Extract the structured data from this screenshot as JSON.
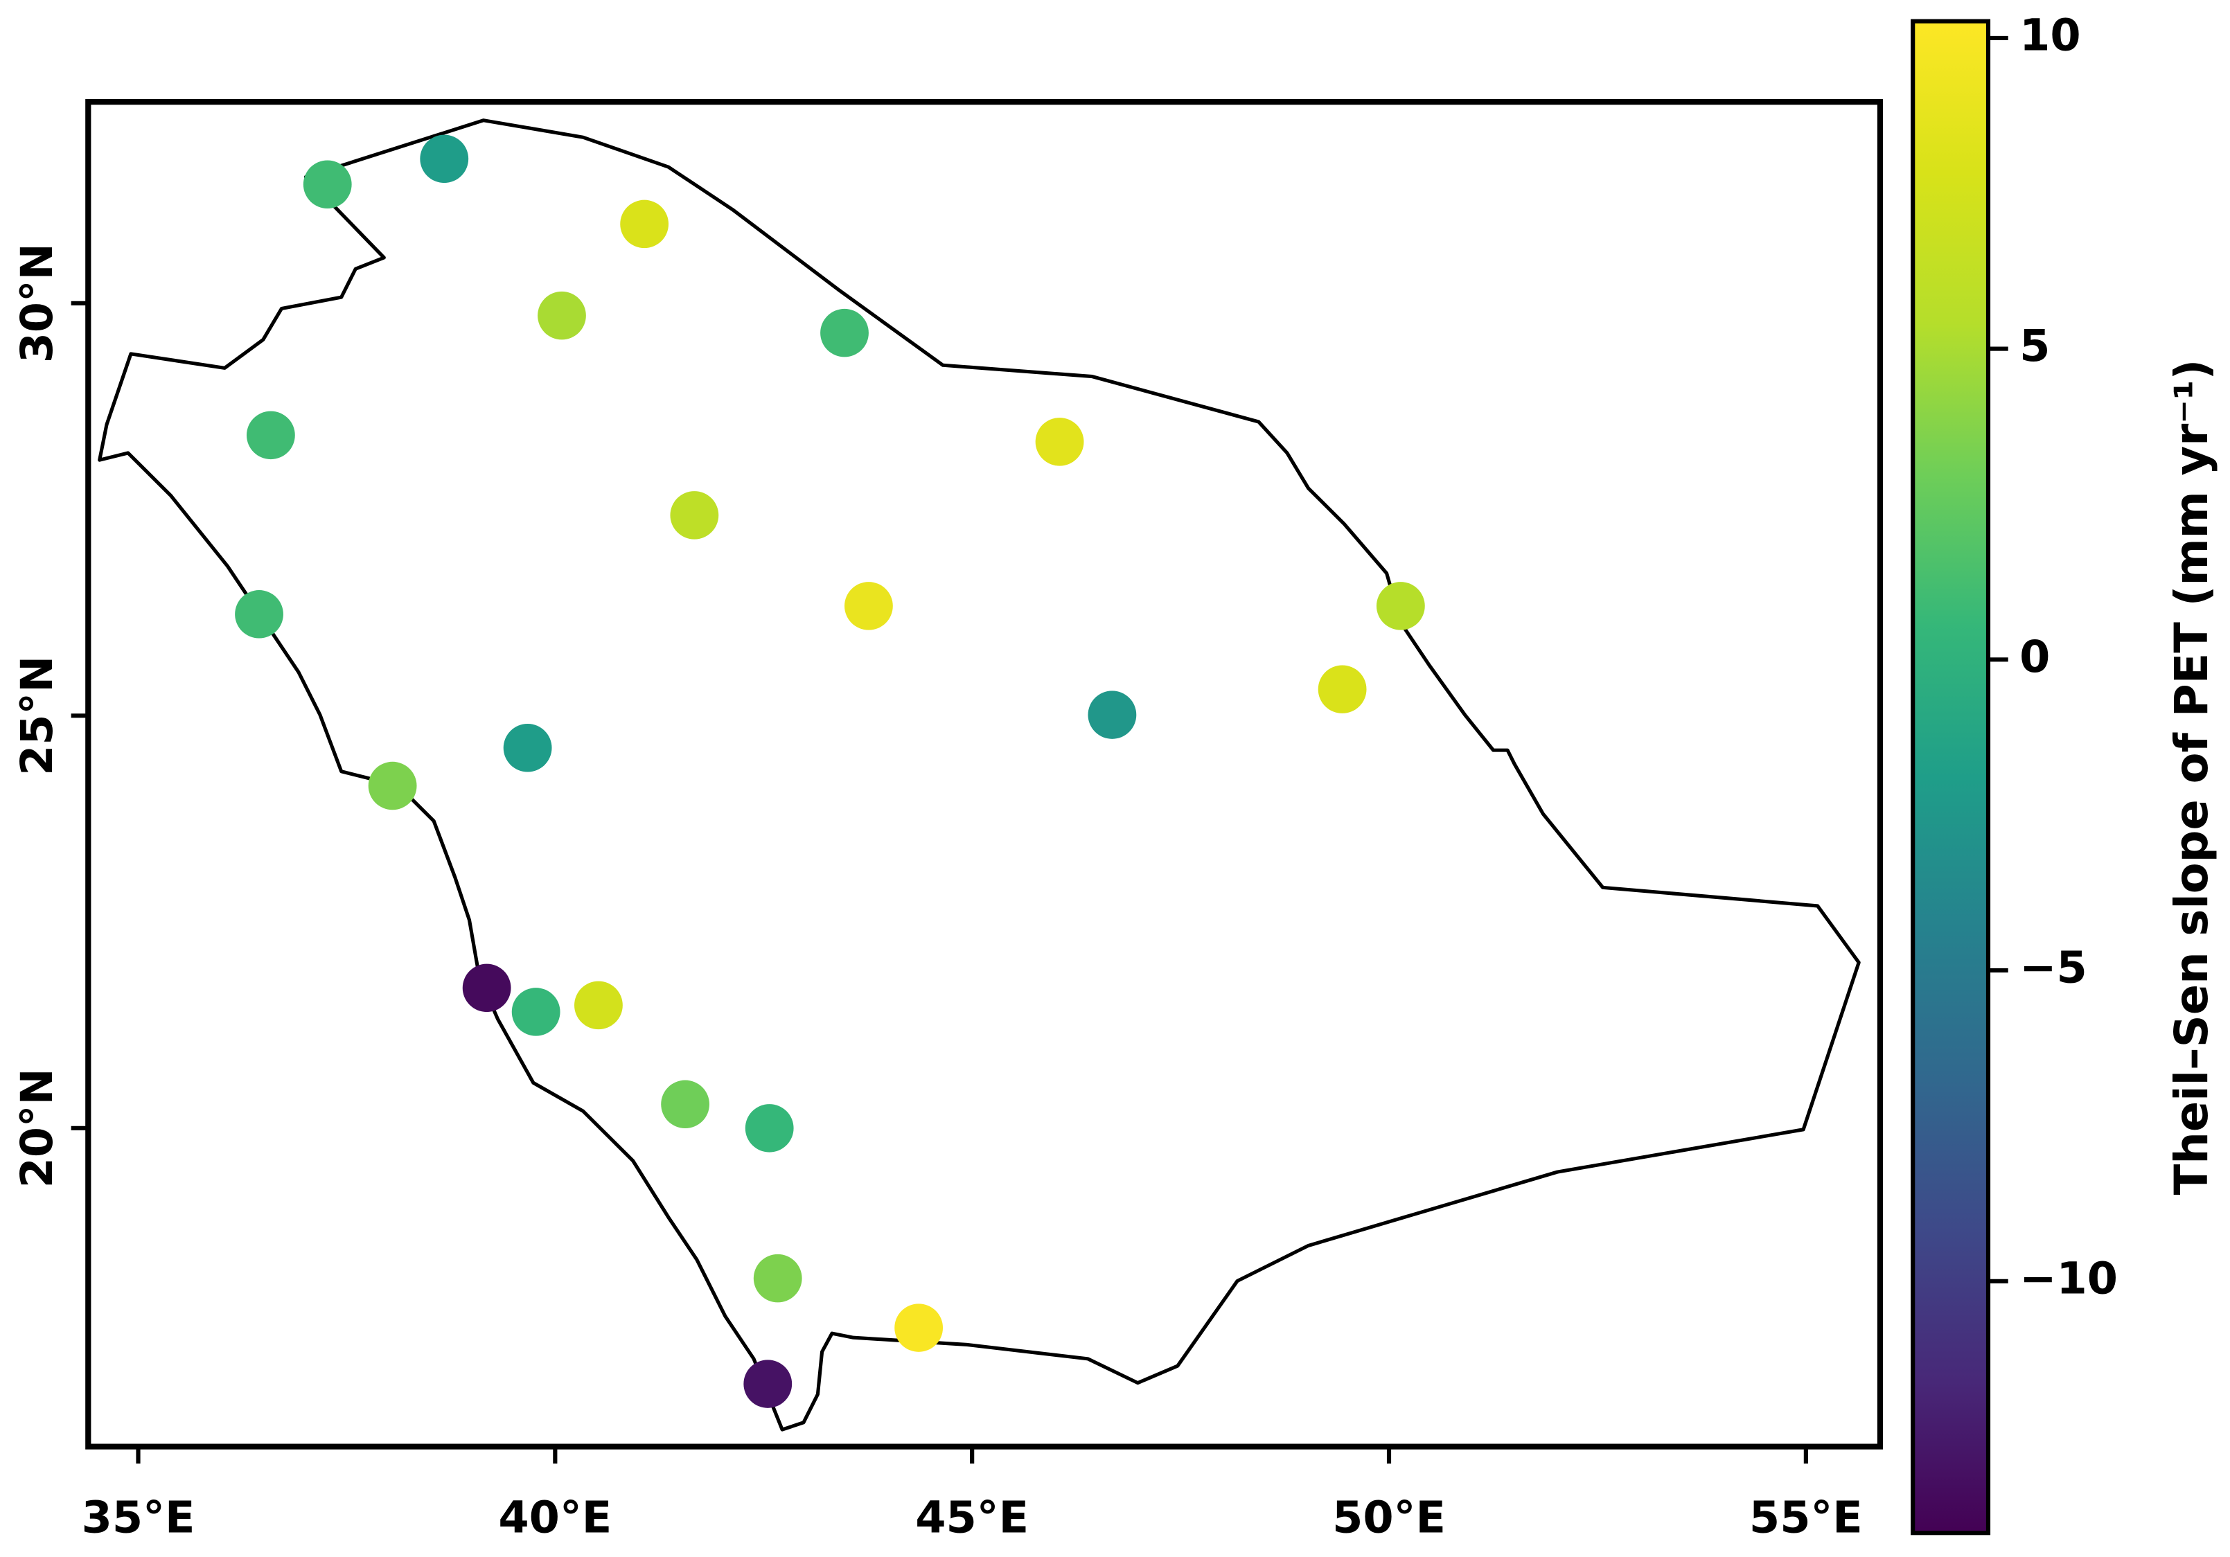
{
  "chart_data": {
    "type": "scatter",
    "x": [
      37.27,
      38.67,
      41.07,
      40.08,
      43.47,
      36.59,
      46.05,
      41.67,
      43.76,
      50.14,
      36.45,
      46.68,
      49.44,
      39.67,
      38.05,
      39.18,
      39.77,
      40.52,
      41.56,
      42.57,
      42.67,
      44.36,
      42.55
    ],
    "y": [
      31.44,
      31.75,
      30.96,
      29.85,
      29.64,
      28.4,
      28.32,
      27.43,
      26.33,
      26.33,
      26.23,
      25.01,
      25.32,
      24.61,
      24.15,
      21.7,
      21.41,
      21.49,
      20.29,
      20.0,
      18.18,
      17.58,
      16.9
    ],
    "values": [
      1,
      -2,
      8,
      5,
      1,
      1,
      8.5,
      6,
      9,
      5.5,
      1,
      -2.5,
      8,
      -2,
      3.5,
      -13.5,
      0.5,
      7.5,
      3,
      0.5,
      3.5,
      10,
      -13
    ],
    "colormap": "viridis",
    "xlim": [
      34.4,
      55.89
    ],
    "ylim": [
      16.14,
      32.44
    ],
    "xticks": [
      {
        "value": 35,
        "label": "35°E"
      },
      {
        "value": 40,
        "label": "40°E"
      },
      {
        "value": 45,
        "label": "45°E"
      },
      {
        "value": 50,
        "label": "50°E"
      },
      {
        "value": 55,
        "label": "55°E"
      }
    ],
    "yticks": [
      {
        "value": 20,
        "label": "20°N"
      },
      {
        "value": 25,
        "label": "25°N"
      },
      {
        "value": 30,
        "label": "30°N"
      }
    ],
    "clim": [
      -14.05,
      10.27
    ],
    "cticks": [
      {
        "value": -10,
        "label": "−10"
      },
      {
        "value": -5,
        "label": "−5"
      },
      0,
      5,
      10
    ],
    "colorbar_label": "Theil–Sen slope of PET (mm yr⁻¹)"
  }
}
